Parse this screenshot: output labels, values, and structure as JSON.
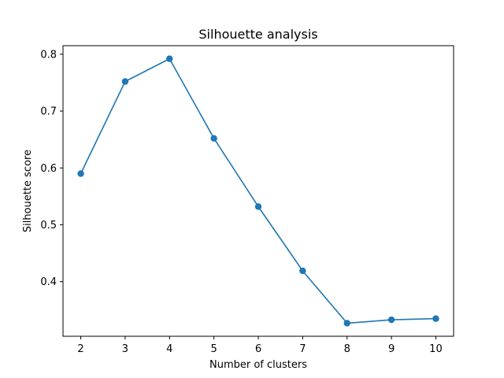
{
  "chart_data": {
    "type": "line",
    "title": "Silhouette analysis",
    "xlabel": "Number of clusters",
    "ylabel": "Silhouette score",
    "x": [
      2,
      3,
      4,
      5,
      6,
      7,
      8,
      9,
      10
    ],
    "series": [
      {
        "values": [
          0.59,
          0.752,
          0.792,
          0.652,
          0.532,
          0.419,
          0.327,
          0.333,
          0.335
        ],
        "color": "#1f77b4",
        "marker": "circle"
      }
    ],
    "xlim": [
      1.6,
      10.4
    ],
    "ylim": [
      0.304,
      0.815
    ],
    "xticks": [
      2,
      3,
      4,
      5,
      6,
      7,
      8,
      9,
      10
    ],
    "yticks": [
      0.4,
      0.5,
      0.6,
      0.7,
      0.8
    ],
    "grid": false,
    "legend": false
  }
}
